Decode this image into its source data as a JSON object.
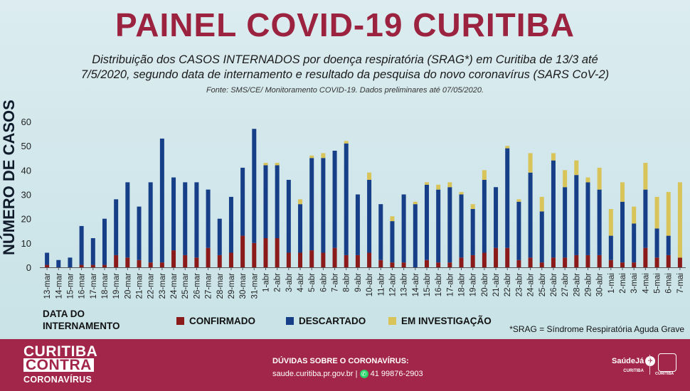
{
  "header": {
    "title": "PAINEL COVID-19 CURITIBA",
    "subtitle_line1": "Distribuição dos CASOS INTERNADOS por doença respiratória (SRAG*) em Curitiba de 13/3 até",
    "subtitle_line2": "7/5/2020, segundo data de internamento e resultado da pesquisa do novo coronavírus (SARS CoV-2)",
    "source": "Fonte: SMS/CE/ Monitoramento COVID-19. Dados preliminares até 07/05/2020."
  },
  "chart_data": {
    "type": "bar",
    "stacked": true,
    "ylabel": "NÚMERO DE CASOS",
    "ylim": [
      0,
      60
    ],
    "yticks": [
      0,
      10,
      20,
      30,
      40,
      50,
      60
    ],
    "categories": [
      "13-mar",
      "14-mar",
      "15-mar",
      "16-mar",
      "17-mar",
      "18-mar",
      "19-mar",
      "20-mar",
      "21-mar",
      "22-mar",
      "23-mar",
      "24-mar",
      "25-mar",
      "26-mar",
      "27-mar",
      "28-mar",
      "29-mar",
      "30-mar",
      "31-mar",
      "1-abr",
      "2-abr",
      "3-abr",
      "4-abr",
      "5-abr",
      "6-abr",
      "7-abr",
      "8-abr",
      "9-abr",
      "10-abr",
      "11-abr",
      "12-abr",
      "13-abr",
      "14-abr",
      "15-abr",
      "16-abr",
      "17-abr",
      "18-abr",
      "19-abr",
      "20-abr",
      "21-abr",
      "22-abr",
      "23-abr",
      "24-abr",
      "25-abr",
      "26-abr",
      "27-abr",
      "28-abr",
      "29-abr",
      "30-abr",
      "1-mai",
      "2-mai",
      "3-mai",
      "4-mai",
      "5-mai",
      "6-mai",
      "7-mai"
    ],
    "series": [
      {
        "name": "CONFIRMADO",
        "color": "#8b1a1a",
        "values": [
          1,
          0,
          0,
          1,
          1,
          1,
          5,
          4,
          3,
          2,
          2,
          7,
          5,
          4,
          8,
          5,
          6,
          13,
          10,
          12,
          12,
          6,
          6,
          7,
          6,
          8,
          5,
          5,
          6,
          3,
          2,
          2,
          0,
          3,
          2,
          2,
          4,
          5,
          6,
          8,
          8,
          3,
          4,
          2,
          4,
          4,
          5,
          5,
          5,
          3,
          2,
          2,
          8,
          4,
          5,
          4
        ]
      },
      {
        "name": "DESCARTADO",
        "color": "#163f87",
        "values": [
          5,
          3,
          4,
          16,
          11,
          19,
          23,
          31,
          22,
          33,
          51,
          30,
          30,
          31,
          24,
          15,
          23,
          28,
          47,
          30,
          30,
          30,
          20,
          38,
          39,
          40,
          46,
          25,
          30,
          23,
          17,
          28,
          26,
          31,
          30,
          31,
          26,
          19,
          30,
          25,
          41,
          24,
          35,
          21,
          40,
          29,
          33,
          30,
          27,
          10,
          25,
          16,
          24,
          12,
          8,
          0
        ]
      },
      {
        "name": "EM INVESTIGAÇÃO",
        "color": "#d9c45a",
        "values": [
          0,
          0,
          0,
          0,
          0,
          0,
          0,
          0,
          0,
          0,
          0,
          0,
          0,
          0,
          0,
          0,
          0,
          0,
          0,
          1,
          1,
          0,
          2,
          1,
          2,
          0,
          1,
          0,
          3,
          0,
          2,
          0,
          1,
          1,
          2,
          2,
          1,
          2,
          4,
          0,
          1,
          1,
          8,
          6,
          3,
          7,
          6,
          2,
          9,
          11,
          8,
          7,
          11,
          13,
          18,
          31
        ]
      }
    ]
  },
  "legend": {
    "axis_title_line1": "DATA DO",
    "axis_title_line2": "INTERNAMENTO",
    "items": [
      {
        "label": "CONFIRMADO",
        "color": "#8b1a1a"
      },
      {
        "label": "DESCARTADO",
        "color": "#163f87"
      },
      {
        "label": "EM INVESTIGAÇÃO",
        "color": "#d9c45a"
      }
    ]
  },
  "note": "*SRAG = Síndrome Respiratória Aguda Grave",
  "footer": {
    "brand_line1": "CURITIBA",
    "brand_line2": "CONTRA",
    "brand_line3": "CORONAVÍRUS",
    "contact_title": "DÚVIDAS SOBRE O CORONAVÍRUS:",
    "contact_site": "saude.curitiba.pr.gov.br",
    "contact_separator": "|",
    "contact_phone": "41 99876-2903",
    "logo_text": "SaúdeJá",
    "logo_sub": "CURITIBA",
    "city_logo_text": "CURITIBA"
  }
}
